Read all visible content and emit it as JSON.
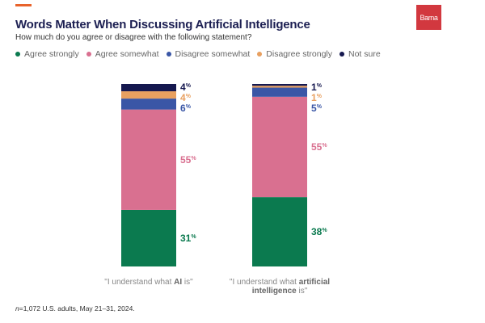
{
  "header": {
    "title": "Words Matter When Discussing Artificial Intelligence",
    "subtitle": "How much do you agree or disagree with the following statement?",
    "logo_text": "Barna"
  },
  "colors": {
    "accent": "#e8632b",
    "title": "#1c1f52",
    "logo": "#d2383f"
  },
  "chart_data": {
    "type": "bar",
    "stacked": true,
    "title": "Words Matter When Discussing Artificial Intelligence",
    "subtitle": "How much do you agree or disagree with the following statement?",
    "legend_position": "top-left",
    "grid": false,
    "ylim": [
      0,
      100
    ],
    "categories": [
      {
        "parts": [
          {
            "text": "\"I understand what ",
            "bold": false
          },
          {
            "text": "AI",
            "bold": true
          },
          {
            "text": " is\"",
            "bold": false
          }
        ]
      },
      {
        "parts": [
          {
            "text": "\"I understand what ",
            "bold": false
          },
          {
            "text": "artificial intelligence",
            "bold": true
          },
          {
            "text": " is\"",
            "bold": false
          }
        ]
      }
    ],
    "series": [
      {
        "name": "Agree strongly",
        "color": "#0b7a4f",
        "values": [
          31,
          38
        ]
      },
      {
        "name": "Agree somewhat",
        "color": "#d97090",
        "values": [
          55,
          55
        ]
      },
      {
        "name": "Disagree somewhat",
        "color": "#3a56a6",
        "values": [
          6,
          5
        ]
      },
      {
        "name": "Disagree strongly",
        "color": "#e8a060",
        "values": [
          4,
          1
        ]
      },
      {
        "name": "Not sure",
        "color": "#15184f",
        "values": [
          4,
          1
        ]
      }
    ],
    "value_suffix": "%"
  },
  "footnote": {
    "italic": "n",
    "text": "=1,072 U.S. adults, May 21–31, 2024."
  }
}
